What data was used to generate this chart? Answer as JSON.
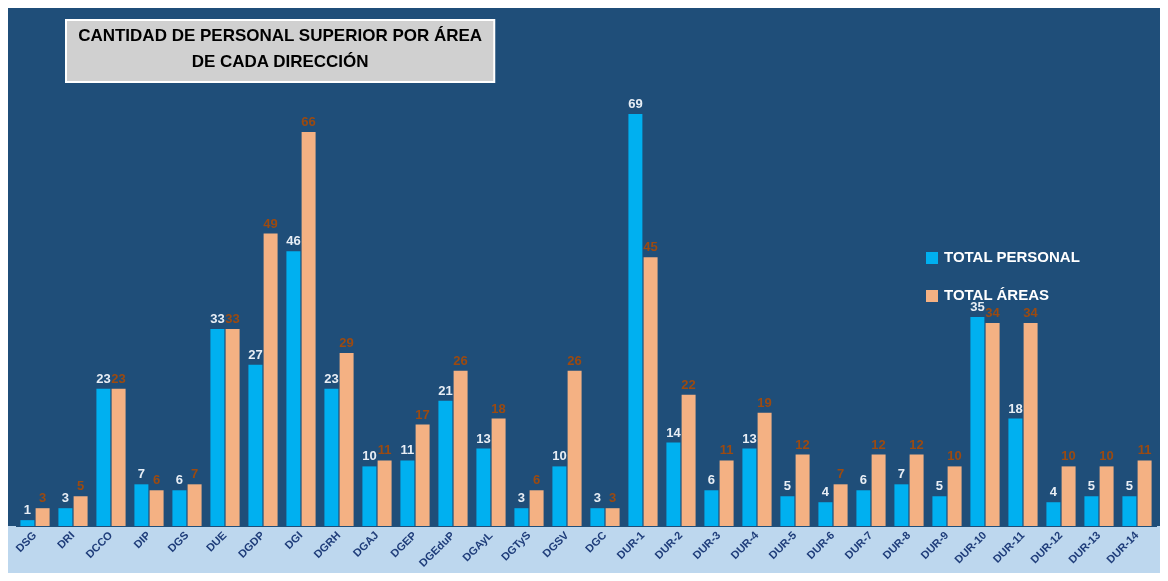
{
  "chart_data": {
    "type": "bar",
    "title": "CANTIDAD DE PERSONAL SUPERIOR POR ÁREA\nDE CADA DIRECCIÓN",
    "categories": [
      "DSG",
      "DRI",
      "DCCO",
      "DIP",
      "DGS",
      "DUE",
      "DGDP",
      "DGI",
      "DGRH",
      "DGAJ",
      "DGEP",
      "DGEduP",
      "DGAyL",
      "DGTyS",
      "DGSV",
      "DGC",
      "DUR-1",
      "DUR-2",
      "DUR-3",
      "DUR-4",
      "DUR-5",
      "DUR-6",
      "DUR-7",
      "DUR-8",
      "DUR-9",
      "DUR-10",
      "DUR-11",
      "DUR-12",
      "DUR-13",
      "DUR-14"
    ],
    "series": [
      {
        "name": "TOTAL PERSONAL",
        "color": "#00b0f0",
        "values": [
          1,
          3,
          23,
          7,
          6,
          33,
          27,
          46,
          23,
          10,
          11,
          21,
          13,
          3,
          10,
          3,
          69,
          14,
          6,
          13,
          5,
          4,
          6,
          7,
          5,
          35,
          18,
          4,
          5,
          5
        ]
      },
      {
        "name": "TOTAL ÁREAS",
        "color": "#f4b183",
        "values": [
          3,
          5,
          23,
          6,
          7,
          33,
          49,
          66,
          29,
          11,
          17,
          26,
          18,
          6,
          26,
          3,
          45,
          22,
          11,
          19,
          12,
          7,
          12,
          12,
          10,
          34,
          34,
          10,
          10,
          11
        ]
      }
    ],
    "data_labels": true,
    "legend": "top right",
    "grid": false,
    "tick_labels": "x"
  }
}
